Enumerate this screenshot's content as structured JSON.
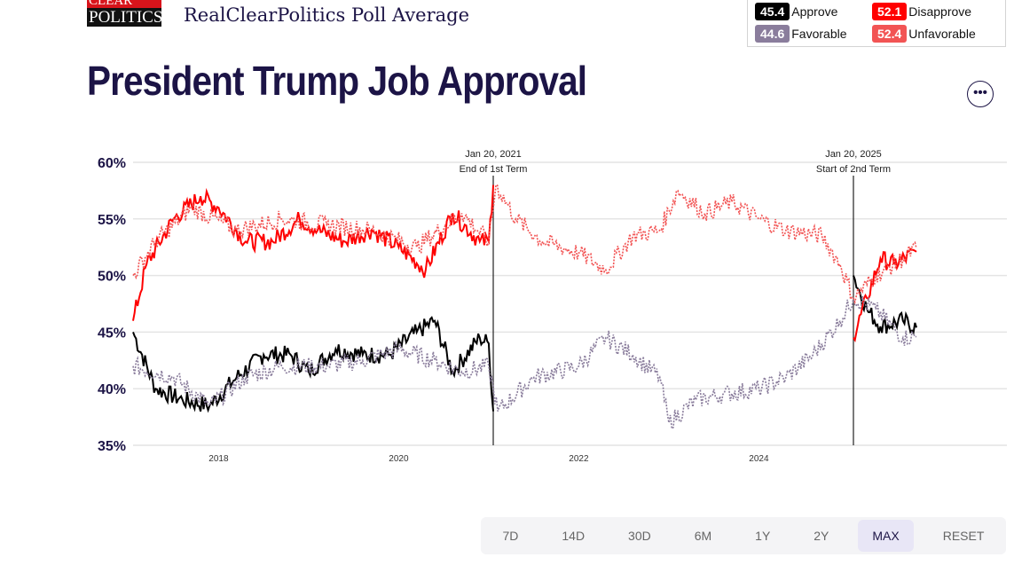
{
  "header": {
    "logo_top": "CLEAR",
    "logo_bottom": "POLITICS",
    "subtitle": "RealClearPolitics Poll Average",
    "title": "President Trump Job Approval"
  },
  "legend": [
    {
      "value": "45.4",
      "label": "Approve",
      "color": "#000000"
    },
    {
      "value": "52.1",
      "label": "Disapprove",
      "color": "#ff0000"
    },
    {
      "value": "44.6",
      "label": "Favorable",
      "color": "#8a7d9c"
    },
    {
      "value": "52.4",
      "label": "Unfavorable",
      "color": "#f25454"
    }
  ],
  "more_icon": "ellipsis-icon",
  "buttons": [
    "7D",
    "14D",
    "30D",
    "6M",
    "1Y",
    "2Y",
    "MAX",
    "RESET"
  ],
  "active_button": "MAX",
  "chart_data": {
    "type": "line",
    "ylim": [
      35,
      60
    ],
    "yticks": [
      "60%",
      "55%",
      "50%",
      "45%",
      "40%",
      "35%"
    ],
    "xticks": [
      "2018",
      "2020",
      "2022",
      "2024"
    ],
    "grid": true,
    "annotations": [
      {
        "x": 2021.05,
        "line1": "Jan 20, 2021",
        "line2": "End of 1st Term"
      },
      {
        "x": 2025.05,
        "line1": "Jan 20, 2025",
        "line2": "Start of 2nd Term"
      }
    ],
    "series": [
      {
        "name": "Approve",
        "color": "#000000",
        "dash": false,
        "segments": [
          [
            [
              2017.05,
              45
            ],
            [
              2017.3,
              40
            ],
            [
              2017.6,
              39
            ],
            [
              2017.9,
              38.5
            ],
            [
              2018.2,
              41
            ],
            [
              2018.5,
              43
            ],
            [
              2018.8,
              43
            ],
            [
              2019.0,
              41.5
            ],
            [
              2019.3,
              43.5
            ],
            [
              2019.6,
              43
            ],
            [
              2019.9,
              43
            ],
            [
              2020.2,
              45
            ],
            [
              2020.4,
              46
            ],
            [
              2020.6,
              41.5
            ],
            [
              2020.9,
              44.5
            ],
            [
              2021.0,
              44
            ],
            [
              2021.05,
              38
            ]
          ],
          [
            [
              2025.05,
              50
            ],
            [
              2025.2,
              47
            ],
            [
              2025.35,
              45.5
            ],
            [
              2025.6,
              46
            ],
            [
              2025.75,
              45.4
            ]
          ]
        ]
      },
      {
        "name": "Disapprove",
        "color": "#ff0000",
        "dash": false,
        "segments": [
          [
            [
              2017.05,
              46
            ],
            [
              2017.2,
              51
            ],
            [
              2017.5,
              55
            ],
            [
              2017.8,
              57
            ],
            [
              2018.0,
              56
            ],
            [
              2018.3,
              53
            ],
            [
              2018.6,
              53
            ],
            [
              2018.9,
              55
            ],
            [
              2019.1,
              54
            ],
            [
              2019.4,
              53
            ],
            [
              2019.7,
              54
            ],
            [
              2020.0,
              52.5
            ],
            [
              2020.3,
              50.5
            ],
            [
              2020.6,
              55.5
            ],
            [
              2020.9,
              53
            ],
            [
              2021.0,
              53
            ],
            [
              2021.05,
              58
            ]
          ],
          [
            [
              2025.05,
              44.5
            ],
            [
              2025.2,
              48
            ],
            [
              2025.35,
              51.5
            ],
            [
              2025.5,
              51
            ],
            [
              2025.75,
              52.1
            ]
          ]
        ]
      },
      {
        "name": "Favorable",
        "color": "#8a7d9c",
        "dash": true,
        "segments": [
          [
            [
              2017.05,
              42
            ],
            [
              2017.5,
              41
            ],
            [
              2017.9,
              38.5
            ],
            [
              2018.3,
              41
            ],
            [
              2018.7,
              42
            ],
            [
              2019.2,
              42
            ],
            [
              2019.6,
              42.5
            ],
            [
              2020.0,
              43.5
            ],
            [
              2020.4,
              42.5
            ],
            [
              2020.7,
              41.5
            ],
            [
              2021.0,
              42
            ],
            [
              2021.1,
              38
            ],
            [
              2021.5,
              41
            ],
            [
              2022.0,
              42
            ],
            [
              2022.3,
              44.5
            ],
            [
              2022.6,
              43
            ],
            [
              2022.9,
              41
            ],
            [
              2023.0,
              37
            ],
            [
              2023.3,
              39
            ],
            [
              2023.6,
              39.5
            ],
            [
              2024.0,
              40
            ],
            [
              2024.3,
              41
            ],
            [
              2024.6,
              43
            ],
            [
              2024.9,
              46
            ],
            [
              2025.05,
              48
            ],
            [
              2025.3,
              47
            ],
            [
              2025.6,
              44.5
            ],
            [
              2025.75,
              44.6
            ]
          ]
        ]
      },
      {
        "name": "Unfavorable",
        "color": "#f25454",
        "dash": true,
        "segments": [
          [
            [
              2017.05,
              50
            ],
            [
              2017.3,
              53
            ],
            [
              2017.7,
              56
            ],
            [
              2018.2,
              54
            ],
            [
              2018.7,
              55
            ],
            [
              2019.2,
              54.5
            ],
            [
              2019.7,
              54
            ],
            [
              2020.2,
              52.5
            ],
            [
              2020.7,
              55.5
            ],
            [
              2021.0,
              53
            ],
            [
              2021.08,
              58
            ],
            [
              2021.3,
              55
            ],
            [
              2021.6,
              53
            ],
            [
              2022.0,
              52
            ],
            [
              2022.3,
              50.5
            ],
            [
              2022.6,
              53.5
            ],
            [
              2022.9,
              54
            ],
            [
              2023.1,
              57.5
            ],
            [
              2023.4,
              55.5
            ],
            [
              2023.7,
              56.5
            ],
            [
              2024.0,
              55
            ],
            [
              2024.3,
              54
            ],
            [
              2024.7,
              53.5
            ],
            [
              2024.9,
              51
            ],
            [
              2025.05,
              48
            ],
            [
              2025.3,
              50
            ],
            [
              2025.6,
              51.5
            ],
            [
              2025.75,
              52.4
            ]
          ]
        ]
      }
    ]
  }
}
